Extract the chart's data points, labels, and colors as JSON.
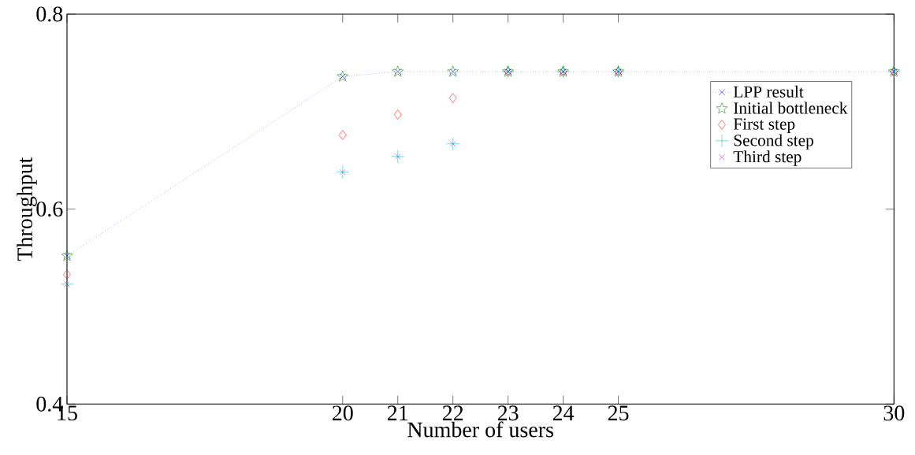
{
  "chart_data": {
    "type": "line",
    "xlabel": "Number of users",
    "ylabel": "Throughput",
    "x": [
      15,
      20,
      21,
      22,
      23,
      24,
      25,
      30
    ],
    "series": [
      {
        "name": "LPP result",
        "color": "#0000ff",
        "marker": "cross",
        "line_style": "dotted",
        "values": [
          0.552,
          0.736,
          0.741,
          0.741,
          0.741,
          0.741,
          0.741,
          0.741
        ]
      },
      {
        "name": "Initial bottleneck",
        "color": "#008000",
        "marker": "star",
        "type": "scatter",
        "values": [
          0.552,
          0.736,
          0.741,
          0.741,
          0.741,
          0.741,
          0.741,
          0.741
        ]
      },
      {
        "name": "First step",
        "color": "#ff0000",
        "marker": "diamond",
        "type": "scatter",
        "values": [
          0.533,
          0.676,
          0.697,
          0.714,
          0.741,
          0.741,
          0.741,
          0.741
        ]
      },
      {
        "name": "Second step",
        "color": "#00bfbf",
        "marker": "plus",
        "type": "scatter",
        "values": [
          0.523,
          0.638,
          0.654,
          0.667,
          0.741,
          0.741,
          0.741,
          0.741
        ]
      },
      {
        "name": "Third step",
        "color": "#bf00bf",
        "marker": "cross",
        "type": "scatter",
        "values": [
          0.523,
          0.638,
          0.654,
          0.667,
          0.741,
          0.741,
          0.741,
          0.741
        ]
      }
    ],
    "xlim": [
      15,
      30
    ],
    "xticks": [
      15,
      20,
      21,
      22,
      23,
      24,
      25,
      30
    ],
    "ylim": [
      0.4,
      0.8
    ],
    "yticks": [
      0.4,
      0.6,
      0.8
    ],
    "grid": false,
    "legend": "top right"
  }
}
